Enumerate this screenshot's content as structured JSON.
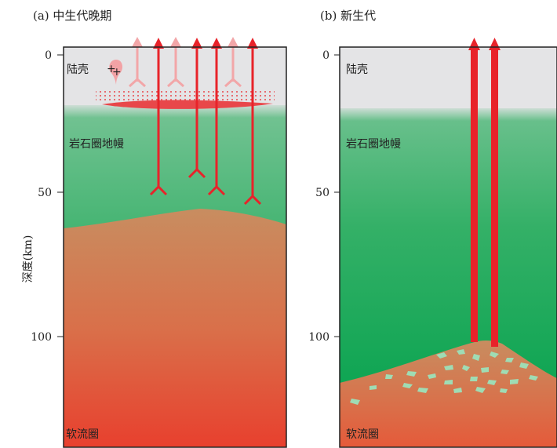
{
  "panels": [
    {
      "title": "(a) 中生代晚期",
      "layers": {
        "crust": "陆壳",
        "lithosphere": "岩石圈地幔",
        "asthenosphere": "软流圈"
      },
      "lab_depth_km": 55
    },
    {
      "title": "(b) 新生代",
      "layers": {
        "crust": "陆壳",
        "lithosphere": "岩石圈地幔",
        "asthenosphere": "软流圈"
      },
      "lab_depth_km": 100
    }
  ],
  "axis": {
    "label": "深度(km)",
    "ticks": [
      "0",
      "50",
      "100"
    ]
  },
  "pluton_symbol": "+",
  "colors": {
    "crust": "#e4e4e6",
    "lithosphere_top": "#7fc49c",
    "lithosphere_bottom": "#00a14b",
    "asthenosphere_top": "#c98a5a",
    "asthenosphere_bottom": "#e8402e",
    "arrow": "#e8232a",
    "arrow_faded": "#f2a6a8",
    "melt": "#e8474a",
    "xenolith": "#9fdcb4"
  }
}
